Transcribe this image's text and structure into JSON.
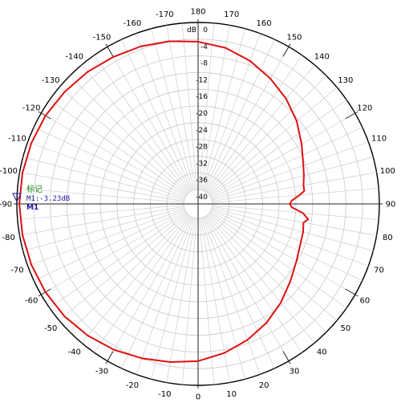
{
  "chart_data": {
    "type": "polar-line",
    "unit": "dB",
    "radial_min": -40,
    "radial_max": 0,
    "radial_step": 4,
    "radial_tick_labels": [
      "0",
      "-4",
      "-8",
      "-12",
      "-16",
      "-20",
      "-24",
      "-28",
      "-32",
      "-36",
      "-40"
    ],
    "angle_labels_top": [
      "-90",
      "-80",
      "-70",
      "-60",
      "-50",
      "-40",
      "-30",
      "-20",
      "-10",
      "0",
      "10",
      "20",
      "30",
      "40",
      "50",
      "60",
      "70",
      "80",
      "90",
      "100",
      "110",
      "120",
      "130",
      "140",
      "150",
      "160",
      "170",
      "180",
      "-170",
      "-160",
      "-150",
      "-140",
      "-130",
      "-120",
      "-110",
      "-100"
    ],
    "grid": true,
    "series": [
      {
        "color": "#dd1111",
        "points": [
          [
            -90,
            -0.6
          ],
          [
            -80,
            -0.7
          ],
          [
            -70,
            -0.9
          ],
          [
            -60,
            -1.2
          ],
          [
            -50,
            -1.6
          ],
          [
            -40,
            -2.3
          ],
          [
            -30,
            -3.1
          ],
          [
            -20,
            -4.1
          ],
          [
            -10,
            -5.0
          ],
          [
            0,
            -5.8
          ],
          [
            10,
            -7.2
          ],
          [
            20,
            -8.8
          ],
          [
            30,
            -10.6
          ],
          [
            40,
            -12.6
          ],
          [
            50,
            -14.6
          ],
          [
            60,
            -16.2
          ],
          [
            70,
            -17.2
          ],
          [
            75,
            -17.4
          ],
          [
            80,
            -17.8
          ],
          [
            82,
            -16.8
          ],
          [
            85,
            -18.2
          ],
          [
            88,
            -21.0
          ],
          [
            90,
            -21.5
          ],
          [
            92,
            -21.0
          ],
          [
            95,
            -19.0
          ],
          [
            97,
            -17.8
          ],
          [
            100,
            -17.8
          ],
          [
            105,
            -17.2
          ],
          [
            110,
            -16.6
          ],
          [
            120,
            -14.8
          ],
          [
            130,
            -12.6
          ],
          [
            140,
            -10.6
          ],
          [
            150,
            -8.8
          ],
          [
            160,
            -7.0
          ],
          [
            170,
            -5.5
          ],
          [
            180,
            -4.6
          ],
          [
            190,
            -3.9
          ],
          [
            200,
            -3.3
          ],
          [
            210,
            -2.8
          ],
          [
            220,
            -2.2
          ],
          [
            230,
            -1.7
          ],
          [
            240,
            -1.2
          ],
          [
            250,
            -0.9
          ],
          [
            260,
            -0.7
          ],
          [
            270,
            -0.6
          ]
        ]
      }
    ],
    "marker": {
      "title": "标记",
      "readout": "M1:-3.23dB",
      "name": "M1",
      "angle": -90
    }
  }
}
